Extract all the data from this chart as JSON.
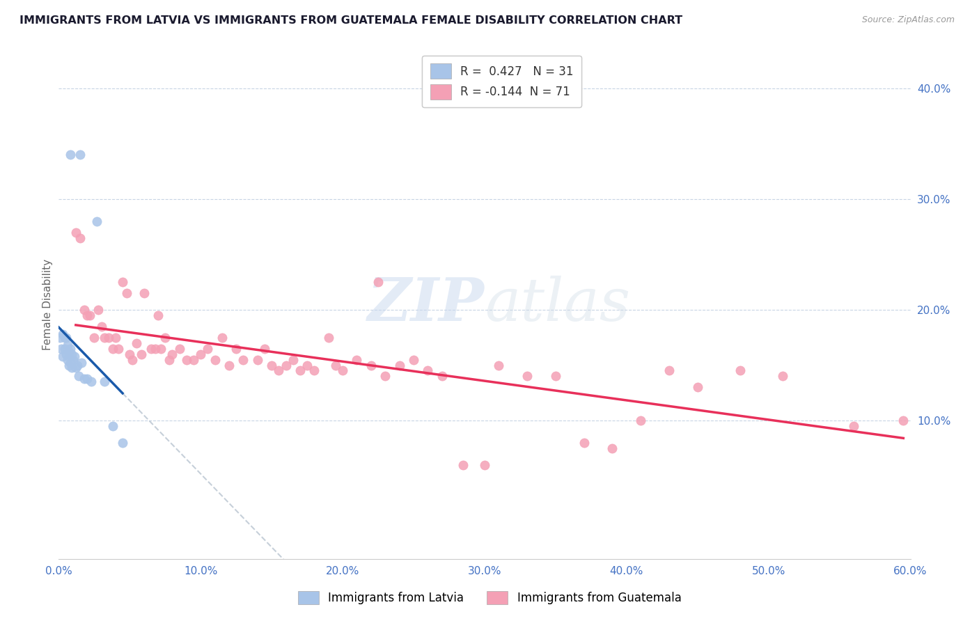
{
  "title": "IMMIGRANTS FROM LATVIA VS IMMIGRANTS FROM GUATEMALA FEMALE DISABILITY CORRELATION CHART",
  "source": "Source: ZipAtlas.com",
  "ylabel": "Female Disability",
  "r_latvia": 0.427,
  "n_latvia": 31,
  "r_guatemala": -0.144,
  "n_guatemala": 71,
  "latvia_color": "#a8c4e8",
  "guatemala_color": "#f4a0b5",
  "latvia_line_color": "#1a5aaa",
  "guatemala_line_color": "#e8305a",
  "dashed_line_color": "#b8c4d0",
  "tick_label_color": "#4472c4",
  "grid_color": "#c8d4e4",
  "background_color": "#ffffff",
  "watermark_color": "#c8d8ee",
  "xmin": 0.0,
  "xmax": 0.6,
  "ymin": -0.025,
  "ymax": 0.435,
  "yticks": [
    0.1,
    0.2,
    0.3,
    0.4
  ],
  "ytick_labels": [
    "10.0%",
    "20.0%",
    "30.0%",
    "40.0%"
  ],
  "xticks": [
    0.0,
    0.1,
    0.2,
    0.3,
    0.4,
    0.5,
    0.6
  ],
  "xtick_labels": [
    "0.0%",
    "10.0%",
    "20.0%",
    "30.0%",
    "40.0%",
    "50.0%",
    "60.0%"
  ],
  "latvia_x": [
    0.008,
    0.015,
    0.001,
    0.002,
    0.003,
    0.003,
    0.004,
    0.004,
    0.005,
    0.005,
    0.006,
    0.006,
    0.007,
    0.007,
    0.008,
    0.008,
    0.009,
    0.009,
    0.01,
    0.011,
    0.012,
    0.013,
    0.014,
    0.016,
    0.018,
    0.02,
    0.023,
    0.027,
    0.032,
    0.038,
    0.045
  ],
  "latvia_y": [
    0.34,
    0.34,
    0.175,
    0.165,
    0.178,
    0.158,
    0.175,
    0.165,
    0.175,
    0.16,
    0.168,
    0.155,
    0.162,
    0.15,
    0.165,
    0.152,
    0.16,
    0.148,
    0.155,
    0.158,
    0.148,
    0.15,
    0.14,
    0.152,
    0.138,
    0.138,
    0.135,
    0.28,
    0.135,
    0.095,
    0.08
  ],
  "guatemala_x": [
    0.012,
    0.015,
    0.018,
    0.02,
    0.022,
    0.025,
    0.028,
    0.03,
    0.032,
    0.035,
    0.038,
    0.04,
    0.042,
    0.045,
    0.048,
    0.05,
    0.052,
    0.055,
    0.058,
    0.06,
    0.065,
    0.068,
    0.07,
    0.072,
    0.075,
    0.078,
    0.08,
    0.085,
    0.09,
    0.095,
    0.1,
    0.105,
    0.11,
    0.115,
    0.12,
    0.125,
    0.13,
    0.14,
    0.145,
    0.15,
    0.155,
    0.16,
    0.165,
    0.17,
    0.175,
    0.18,
    0.19,
    0.195,
    0.2,
    0.21,
    0.22,
    0.225,
    0.23,
    0.24,
    0.25,
    0.26,
    0.27,
    0.285,
    0.3,
    0.31,
    0.33,
    0.35,
    0.37,
    0.39,
    0.41,
    0.43,
    0.45,
    0.48,
    0.51,
    0.56,
    0.595
  ],
  "guatemala_y": [
    0.27,
    0.265,
    0.2,
    0.195,
    0.195,
    0.175,
    0.2,
    0.185,
    0.175,
    0.175,
    0.165,
    0.175,
    0.165,
    0.225,
    0.215,
    0.16,
    0.155,
    0.17,
    0.16,
    0.215,
    0.165,
    0.165,
    0.195,
    0.165,
    0.175,
    0.155,
    0.16,
    0.165,
    0.155,
    0.155,
    0.16,
    0.165,
    0.155,
    0.175,
    0.15,
    0.165,
    0.155,
    0.155,
    0.165,
    0.15,
    0.145,
    0.15,
    0.155,
    0.145,
    0.15,
    0.145,
    0.175,
    0.15,
    0.145,
    0.155,
    0.15,
    0.225,
    0.14,
    0.15,
    0.155,
    0.145,
    0.14,
    0.06,
    0.06,
    0.15,
    0.14,
    0.14,
    0.08,
    0.075,
    0.1,
    0.145,
    0.13,
    0.145,
    0.14,
    0.095,
    0.1
  ],
  "legend_latvia_label": "Immigrants from Latvia",
  "legend_guatemala_label": "Immigrants from Guatemala"
}
